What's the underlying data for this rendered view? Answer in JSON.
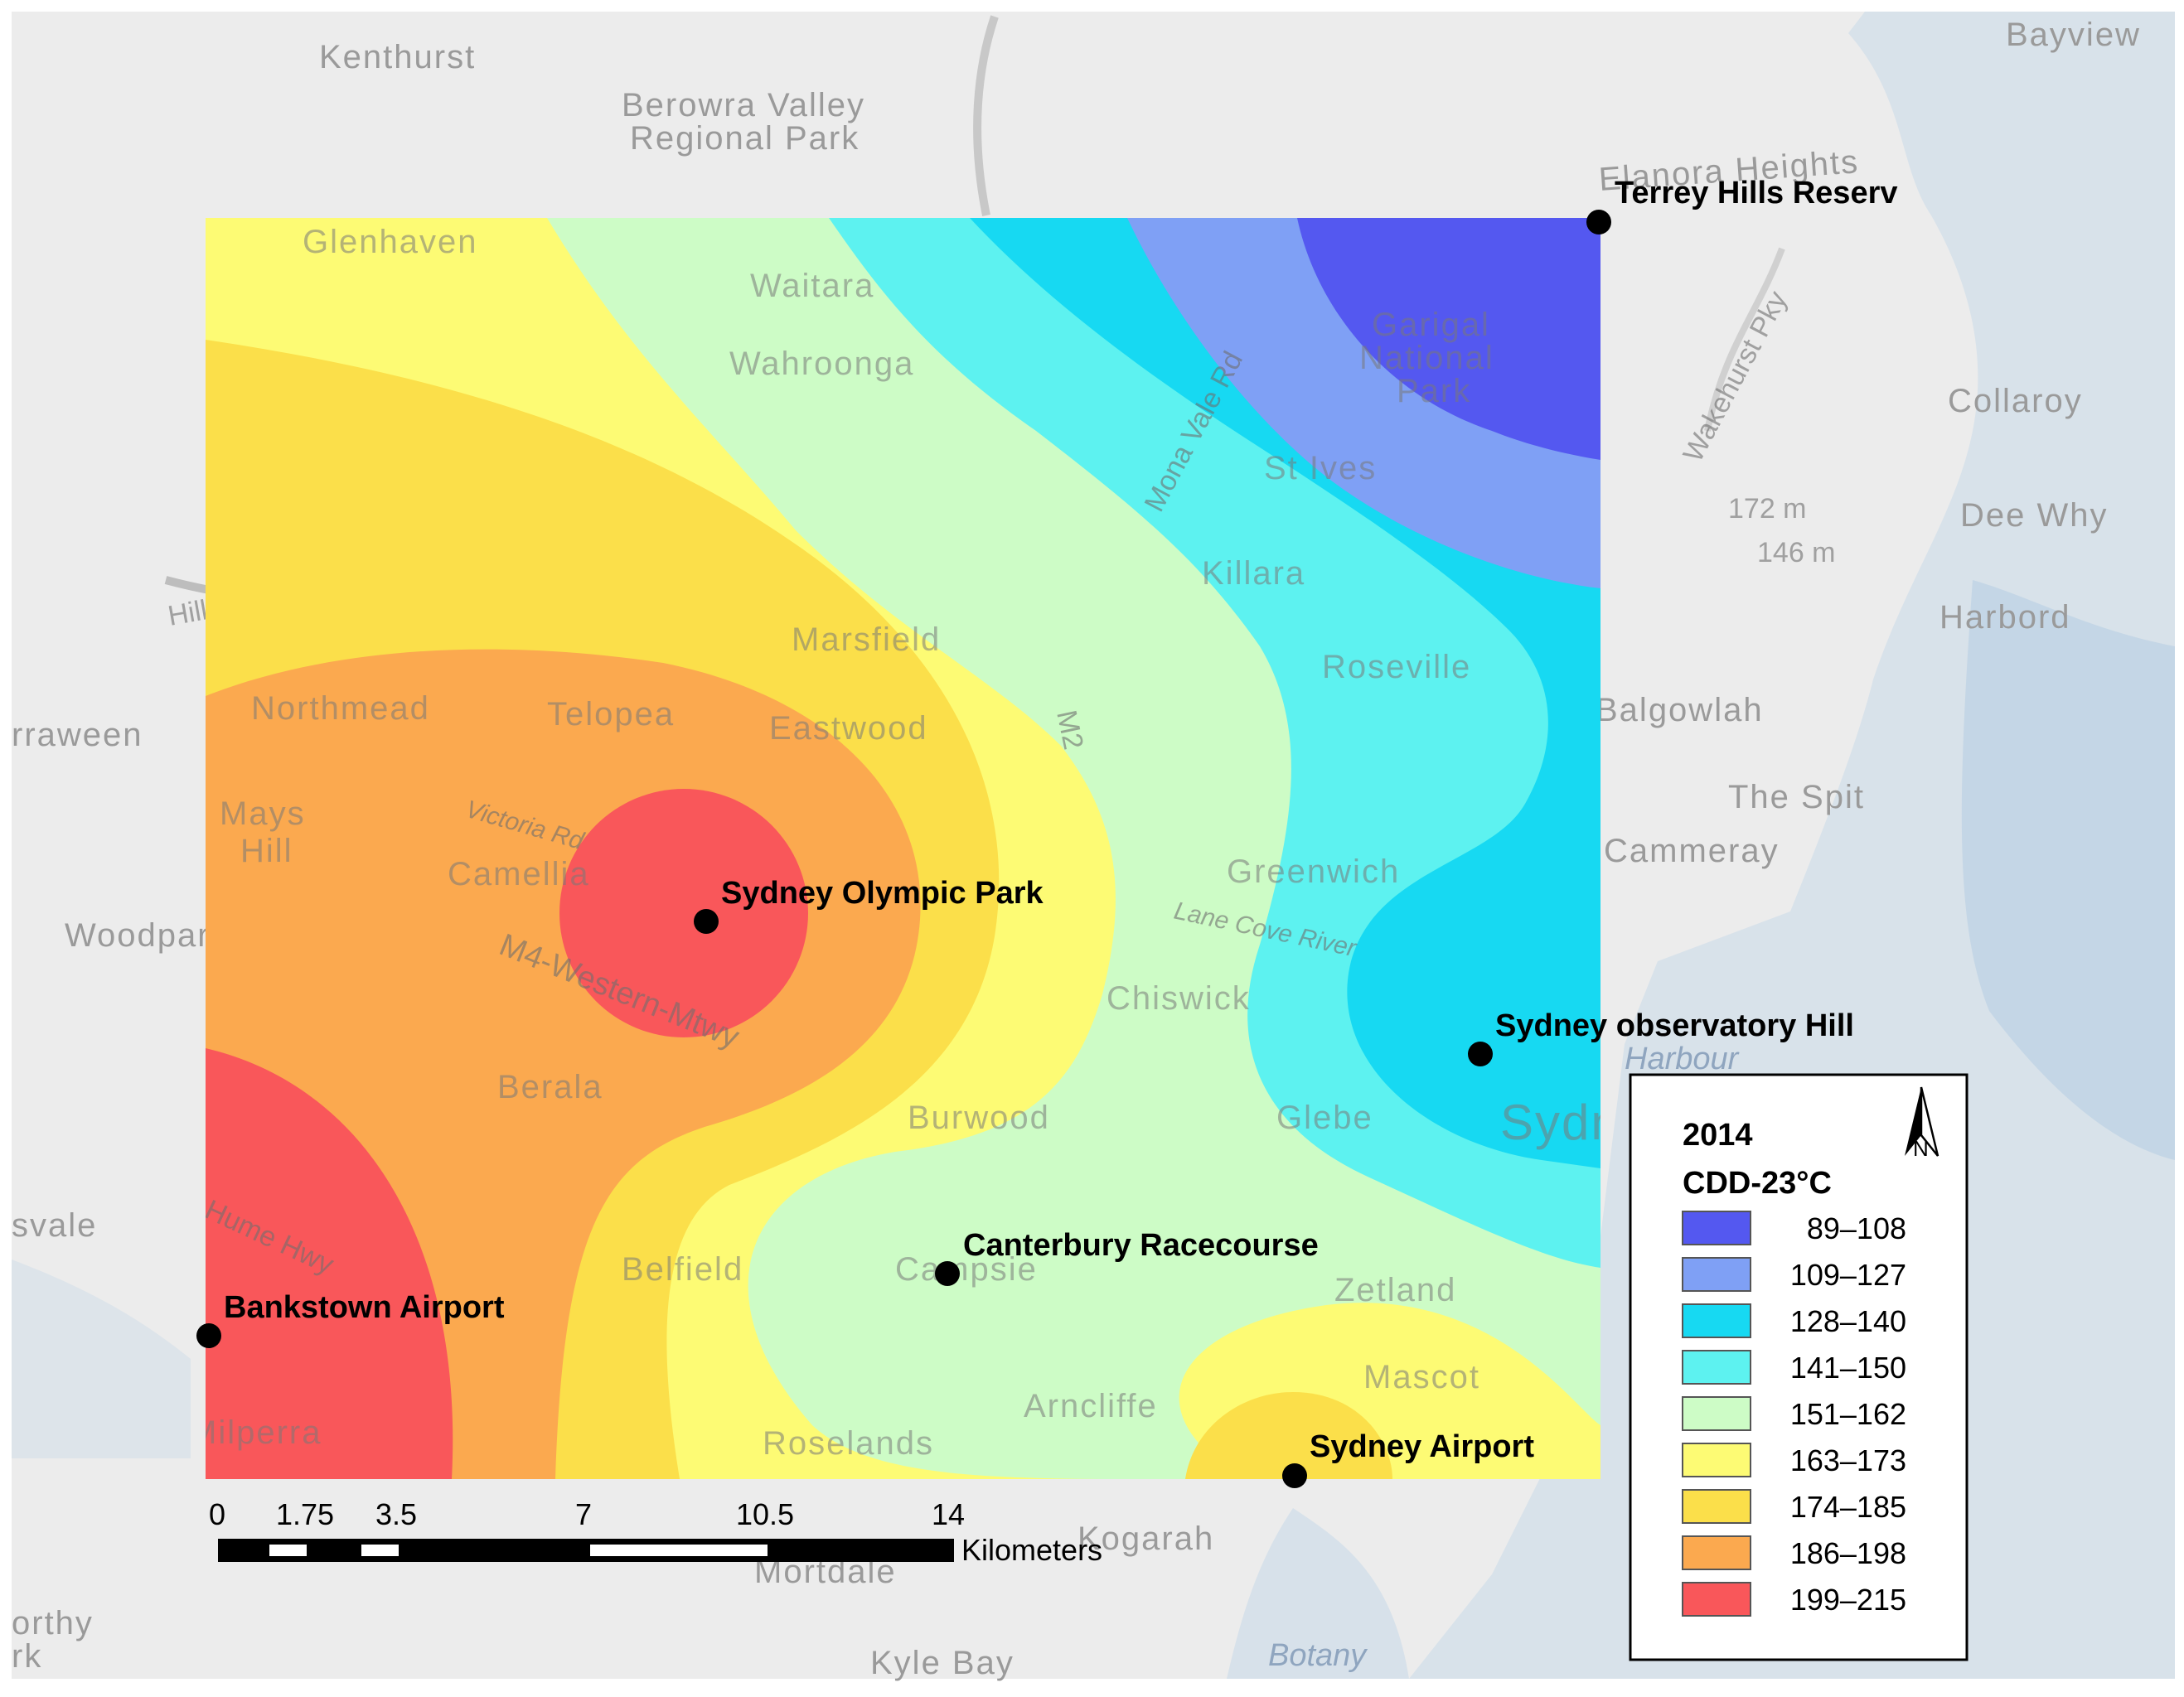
{
  "legend": {
    "year": "2014",
    "metric": "CDD-23°C",
    "north_label": "N",
    "classes": [
      {
        "range": "89–108",
        "color": "#5458f0"
      },
      {
        "range": "109–127",
        "color": "#7fa0f5"
      },
      {
        "range": "128–140",
        "color": "#17d9f2"
      },
      {
        "range": "141–150",
        "color": "#5df2f0"
      },
      {
        "range": "151–162",
        "color": "#cdfcc6"
      },
      {
        "range": "163–173",
        "color": "#fdfb74"
      },
      {
        "range": "174–185",
        "color": "#fbdf4a"
      },
      {
        "range": "186–198",
        "color": "#fba94f"
      },
      {
        "range": "199–215",
        "color": "#f9575a"
      }
    ]
  },
  "stations": [
    {
      "id": "terrey",
      "name": "Terrey Hills Reserv"
    },
    {
      "id": "olympic",
      "name": "Sydney Olympic Park"
    },
    {
      "id": "observatory",
      "name": "Sydney observatory Hill"
    },
    {
      "id": "canterbury",
      "name": "Canterbury Racecourse"
    },
    {
      "id": "bankstown",
      "name": "Bankstown Airport"
    },
    {
      "id": "airport",
      "name": "Sydney Airport"
    }
  ],
  "scale_bar": {
    "ticks": [
      "0",
      "1.75",
      "3.5",
      "7",
      "10.5",
      "14"
    ],
    "unit": "Kilometers"
  },
  "basemap_places": [
    {
      "id": "kenthurst",
      "name": "Kenthurst"
    },
    {
      "id": "berowra1",
      "name": "Berowra Valley"
    },
    {
      "id": "berowra2",
      "name": "Regional Park"
    },
    {
      "id": "bayview",
      "name": "Bayview"
    },
    {
      "id": "collaroy",
      "name": "Collaroy"
    },
    {
      "id": "deewhy",
      "name": "Dee Why"
    },
    {
      "id": "harbord",
      "name": "Harbord"
    },
    {
      "id": "balgowlah",
      "name": "Balgowlah"
    },
    {
      "id": "thespit",
      "name": "The Spit"
    },
    {
      "id": "cammeray",
      "name": "Cammeray"
    },
    {
      "id": "woodpark",
      "name": "Woodpark"
    },
    {
      "id": "rraween",
      "name": "rraween"
    },
    {
      "id": "svale",
      "name": "svale"
    },
    {
      "id": "kogarah",
      "name": "Kogarah"
    },
    {
      "id": "mortdale",
      "name": "Mortdale"
    },
    {
      "id": "kylebay",
      "name": "Kyle Bay"
    },
    {
      "id": "botany",
      "name": "Botany"
    },
    {
      "id": "orthy",
      "name": "orthy"
    },
    {
      "id": "rk",
      "name": "rk"
    },
    {
      "id": "elanora",
      "name": "Elanora Heights"
    },
    {
      "id": "hills",
      "name": "Hills Mtwy"
    },
    {
      "id": "wakehurst",
      "name": "Wakehurst Pky"
    },
    {
      "id": "m172",
      "name": "172 m"
    },
    {
      "id": "m146",
      "name": "146 m"
    },
    {
      "id": "harbour",
      "name": "Harbour"
    }
  ],
  "overlay_places": [
    {
      "id": "glenhaven",
      "name": "Glenhaven"
    },
    {
      "id": "waitara",
      "name": "Waitara"
    },
    {
      "id": "wahroonga",
      "name": "Wahroonga"
    },
    {
      "id": "garigal1",
      "name": "Garigal"
    },
    {
      "id": "garigal2",
      "name": "National"
    },
    {
      "id": "garigal3",
      "name": "Park"
    },
    {
      "id": "stives",
      "name": "St Ives"
    },
    {
      "id": "monavale",
      "name": "Mona Vale Rd"
    },
    {
      "id": "killara",
      "name": "Killara"
    },
    {
      "id": "roseville",
      "name": "Roseville"
    },
    {
      "id": "marsfield",
      "name": "Marsfield"
    },
    {
      "id": "northmead",
      "name": "Northmead"
    },
    {
      "id": "telopea",
      "name": "Telopea"
    },
    {
      "id": "eastwood",
      "name": "Eastwood"
    },
    {
      "id": "mays1",
      "name": "Mays"
    },
    {
      "id": "mays2",
      "name": "Hill"
    },
    {
      "id": "camellia",
      "name": "Camellia"
    },
    {
      "id": "greenwich",
      "name": "Greenwich"
    },
    {
      "id": "chiswick",
      "name": "Chiswick"
    },
    {
      "id": "berala",
      "name": "Berala"
    },
    {
      "id": "burwood",
      "name": "Burwood"
    },
    {
      "id": "glebe",
      "name": "Glebe"
    },
    {
      "id": "sydney",
      "name": "Sydney"
    },
    {
      "id": "belfield",
      "name": "Belfield"
    },
    {
      "id": "campsie",
      "name": "Campsie"
    },
    {
      "id": "zetland",
      "name": "Zetland"
    },
    {
      "id": "mascot",
      "name": "Mascot"
    },
    {
      "id": "arncliffe",
      "name": "Arncliffe"
    },
    {
      "id": "roselands",
      "name": "Roselands"
    },
    {
      "id": "milperra",
      "name": "Milperra"
    },
    {
      "id": "m2",
      "name": "M2"
    },
    {
      "id": "m4",
      "name": "M4-Western-Mtwy"
    },
    {
      "id": "hume",
      "name": "Hume Hwy"
    },
    {
      "id": "lanecove",
      "name": "Lane Cove River"
    },
    {
      "id": "victoria",
      "name": "Victoria Rd"
    }
  ]
}
